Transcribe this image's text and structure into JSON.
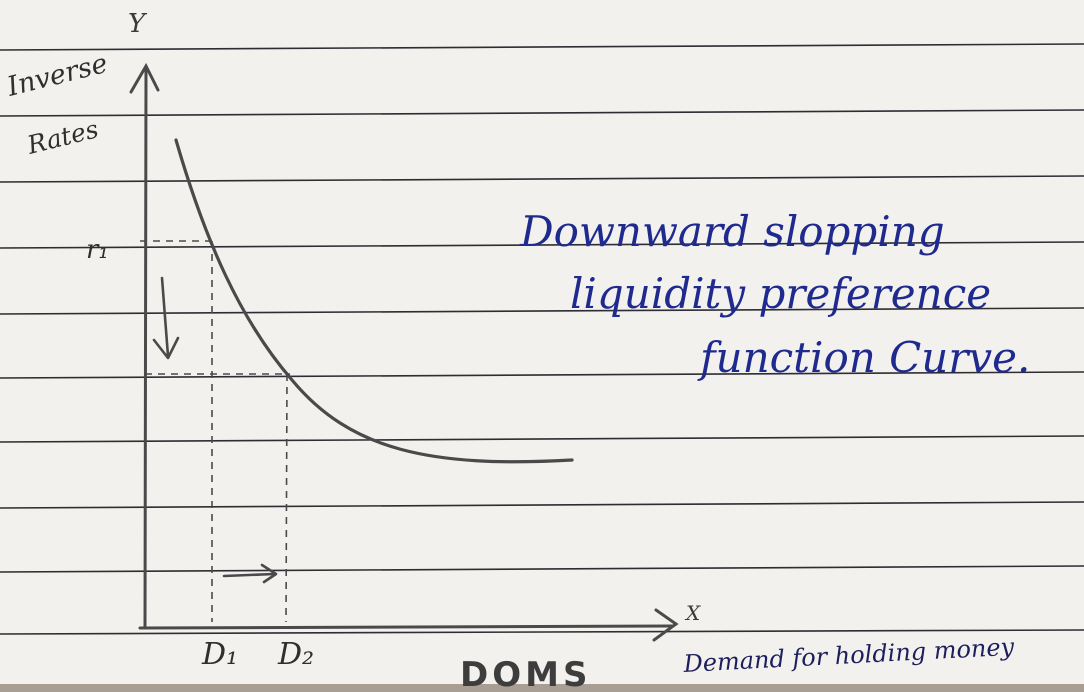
{
  "colors": {
    "paper": "#f3f1ee",
    "rule_lines": "#2d2d33",
    "pencil": "#4a4a4a",
    "ink_blue": "#1f2a8f",
    "ink_dark": "#1c1f5c",
    "brand_grey": "#3d3d3d",
    "table_edge": "#6b5a4a"
  },
  "diagram": {
    "axis_y_label": "Y",
    "axis_x_label": "X",
    "y_axis_title_line1": "Inverse",
    "y_axis_title_line2": "Rates",
    "level_r1": "r₁",
    "demand_d1": "D₁",
    "demand_d2": "D₂",
    "x_axis_caption": "Demand for holding money",
    "annotation_lines": [
      "Downward slopping",
      "liquidity preference",
      "function Curve."
    ],
    "brand_mark": "DOMS"
  }
}
